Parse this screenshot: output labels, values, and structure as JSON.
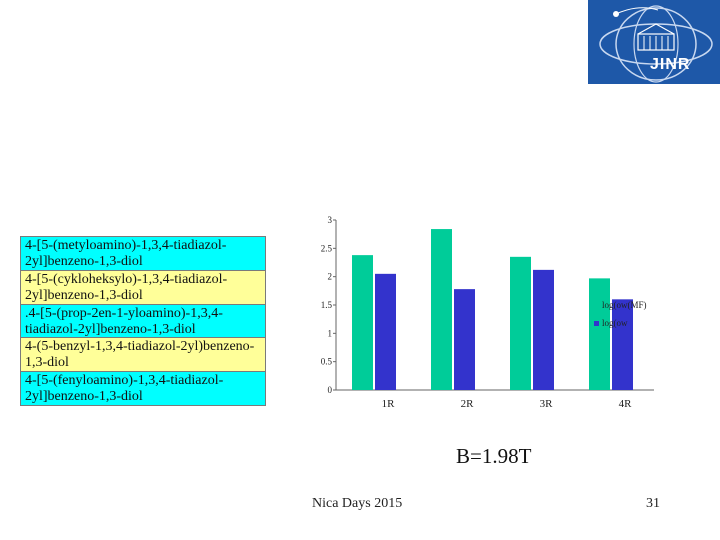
{
  "logo": {
    "text": "JINR"
  },
  "compounds": [
    {
      "name": "4-[5-(metyloamino)-1,3,4-tiadiazol-2yl]benzeno-1,3-diol",
      "color": "#00ffff"
    },
    {
      "name": "4-[5-(cykloheksylo)-1,3,4-tiadiazol-2yl]benzeno-1,3-diol",
      "color": "#ffff99"
    },
    {
      "name": ".4-[5-(prop-2en-1-yloamino)-1,3,4-tiadiazol-2yl]benzeno-1,3-diol",
      "color": "#00ffff"
    },
    {
      "name": "4-(5-benzyl-1,3,4-tiadiazol-2yl)benzeno-1,3-diol",
      "color": "#ffff99"
    },
    {
      "name": "4-[5-(fenyloamino)-1,3,4-tiadiazol-2yl]benzeno-1,3-diol",
      "color": "#00ffff"
    }
  ],
  "chart_data": {
    "type": "bar",
    "categories": [
      "1R",
      "2R",
      "3R",
      "4R"
    ],
    "series": [
      {
        "name": "log(ow(MF)",
        "values": [
          2.38,
          2.84,
          2.35,
          1.97
        ],
        "color": "#00cc99"
      },
      {
        "name": "log(ow",
        "values": [
          2.05,
          1.78,
          2.12,
          1.6
        ],
        "color": "#3333cc"
      }
    ],
    "y_ticks": [
      "0",
      "0.5",
      "1",
      "1.5",
      "2",
      "2.5",
      "3"
    ],
    "ylim": [
      0,
      3
    ],
    "legend_position": "right",
    "grid": false
  },
  "field_label": "B=1.98T",
  "footer": {
    "left": "Nica Days 2015",
    "right": "31"
  }
}
